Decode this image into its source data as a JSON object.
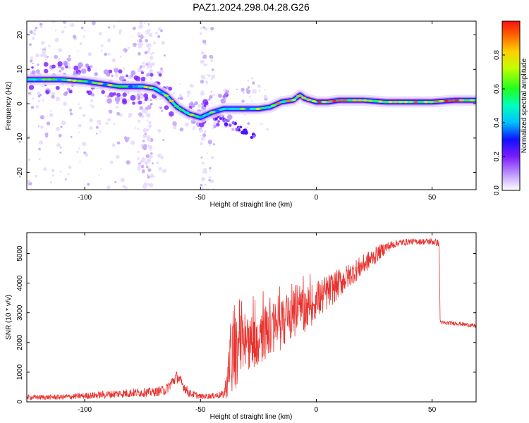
{
  "title": "PAZ1.2024.298.04.28.G26",
  "colors": {
    "snr_line": "#e8322e",
    "ridge_core": "#ff2020",
    "scatter": "#a070f0"
  },
  "chart_data": [
    {
      "type": "heatmap",
      "name": "spectrogram",
      "xlabel": "Height of straight line (km)",
      "ylabel": "Frequency (Hz)",
      "xlim": [
        -125,
        69
      ],
      "ylim": [
        -25,
        24
      ],
      "xticks": [
        -100,
        -50,
        0,
        50
      ],
      "yticks": [
        -20,
        -10,
        0,
        10,
        20
      ],
      "grid": false,
      "ridge": {
        "x": [
          -125,
          -110,
          -100,
          -95,
          -90,
          -85,
          -80,
          -75,
          -70,
          -65,
          -60,
          -55,
          -50,
          -45,
          -40,
          -35,
          -30,
          -25,
          -20,
          -15,
          -10,
          -7,
          -5,
          0,
          5,
          10,
          20,
          30,
          40,
          50,
          60,
          69
        ],
        "y": [
          7,
          7,
          6.5,
          6,
          5.5,
          5,
          5,
          5,
          4.5,
          2.5,
          -1,
          -3,
          -4,
          -2.5,
          -1.5,
          -1.5,
          -1.5,
          -1.5,
          -1,
          0.5,
          1,
          2.5,
          1.5,
          0.5,
          0.5,
          1,
          1,
          0.5,
          0.5,
          0.5,
          1,
          1
        ]
      },
      "branch": {
        "x": [
          -45,
          -40,
          -35,
          -30,
          -26
        ],
        "y": [
          -4,
          -5,
          -6.5,
          -8.5,
          -10
        ]
      },
      "colorbar": {
        "label": "Normalized spectral amplitude",
        "range": [
          0,
          1
        ],
        "ticks": [
          "0.0",
          "0.2",
          "0.4",
          "0.6",
          "0.8"
        ],
        "colormap": "rainbow-white-to-red"
      }
    },
    {
      "type": "line",
      "name": "snr",
      "xlabel": "Height of straight line (km)",
      "ylabel": "SNR (10 * v/v)",
      "xlim": [
        -125,
        69
      ],
      "ylim": [
        0,
        5700
      ],
      "xticks": [
        -100,
        -50,
        0,
        50
      ],
      "yticks": [
        0,
        1000,
        2000,
        3000,
        4000,
        5000
      ],
      "grid": false,
      "envelope": {
        "x": [
          -125,
          -110,
          -100,
          -90,
          -80,
          -70,
          -65,
          -62,
          -60,
          -58,
          -55,
          -50,
          -45,
          -40,
          -38,
          -37,
          -35,
          -30,
          -25,
          -20,
          -15,
          -10,
          -5,
          0,
          5,
          10,
          15,
          20,
          25,
          30,
          35,
          40,
          45,
          50,
          53,
          53.5,
          55,
          60,
          65,
          69
        ],
        "base": [
          150,
          160,
          200,
          250,
          300,
          330,
          400,
          700,
          850,
          600,
          300,
          180,
          200,
          250,
          800,
          1500,
          1700,
          2000,
          2200,
          2400,
          2600,
          2900,
          3100,
          3400,
          3700,
          4000,
          4300,
          4600,
          4900,
          5200,
          5350,
          5400,
          5400,
          5400,
          5350,
          2700,
          2650,
          2650,
          2600,
          2550
        ],
        "amp": [
          80,
          90,
          110,
          130,
          150,
          150,
          180,
          200,
          220,
          200,
          150,
          90,
          100,
          130,
          700,
          1200,
          1300,
          1100,
          1000,
          900,
          850,
          800,
          750,
          700,
          600,
          500,
          400,
          350,
          300,
          200,
          120,
          100,
          100,
          120,
          120,
          80,
          70,
          70,
          70,
          70
        ]
      }
    }
  ]
}
